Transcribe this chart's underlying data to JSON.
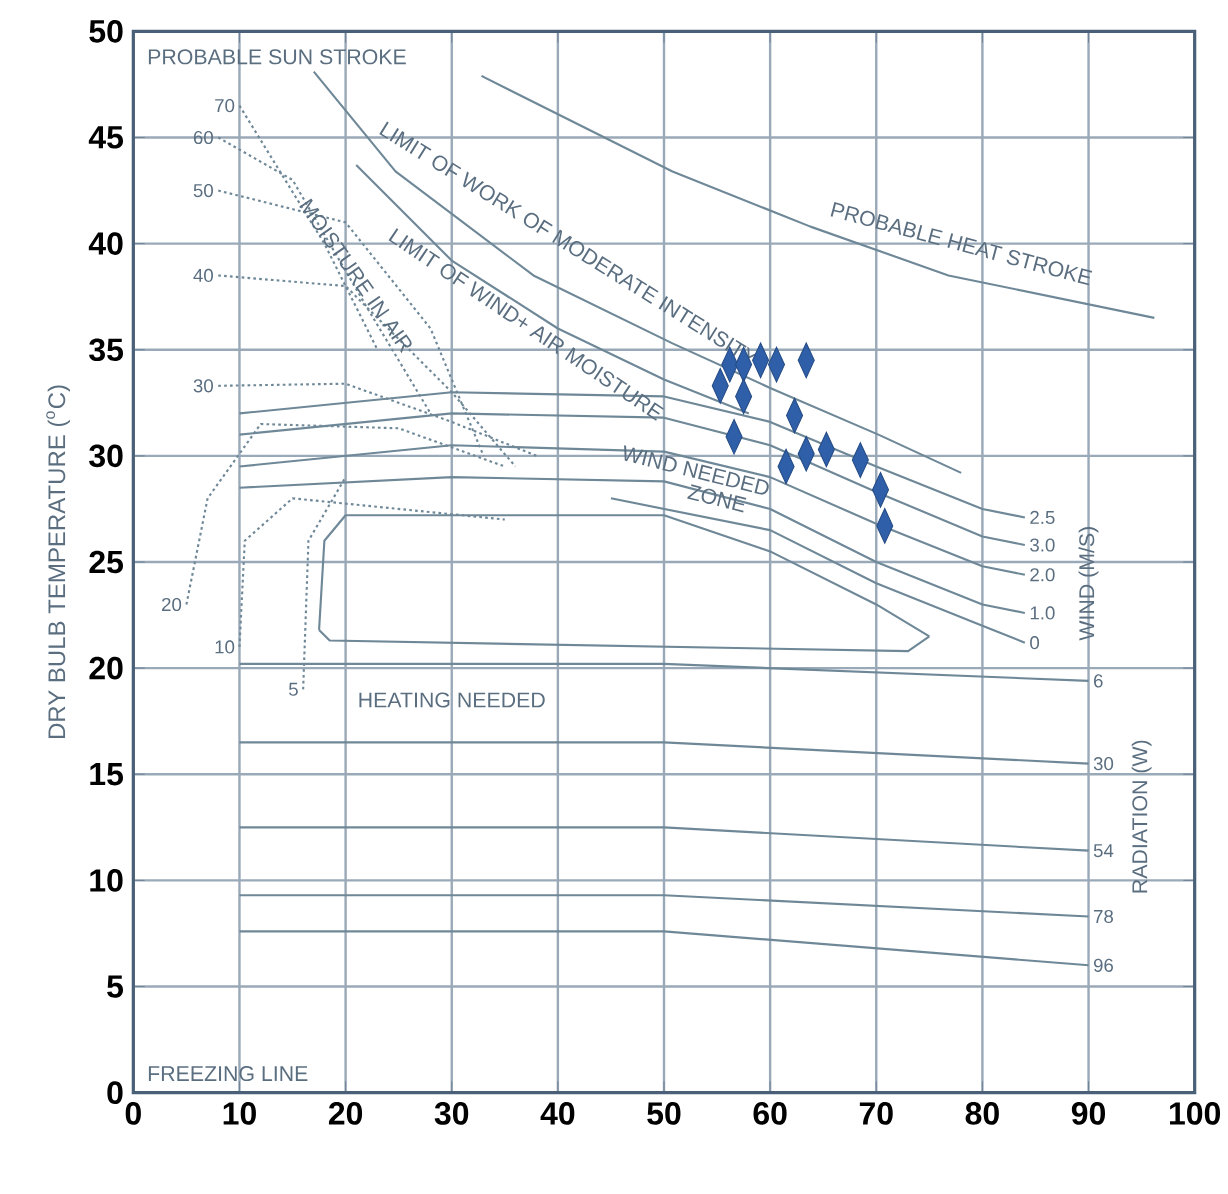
{
  "chart_data": {
    "type": "scatter",
    "ylabel": "DRY BULB TEMPERATURE ($^{o}$C)",
    "xlim": [
      0,
      100
    ],
    "xticks": [
      0,
      10,
      20,
      30,
      40,
      50,
      60,
      70,
      80,
      90,
      100
    ],
    "ylim": [
      0,
      50
    ],
    "yticks": [
      0,
      5,
      10,
      15,
      20,
      25,
      30,
      35,
      40,
      45,
      50
    ],
    "grid": true,
    "series": [
      {
        "type": "line",
        "color": "#6f8898",
        "x": [
          32.8,
          50.8,
          63.8,
          76.8,
          96.2
        ],
        "values": [
          47.9,
          43.4,
          40.8,
          38.5,
          36.5
        ]
      },
      {
        "type": "line",
        "color": "#6f8898",
        "x": [
          17,
          24.7,
          37.7,
          50.8,
          60,
          70.2,
          78
        ],
        "values": [
          48.1,
          43.4,
          38.5,
          35.3,
          33.2,
          31,
          29.2
        ]
      },
      {
        "type": "line",
        "color": "#6f8898",
        "x": [
          21,
          30,
          40,
          50,
          58
        ],
        "values": [
          43.7,
          39.2,
          36,
          33.6,
          32
        ]
      },
      {
        "type": "line",
        "color": "#6f8898",
        "x": [
          17.5,
          18,
          20,
          50,
          60,
          70,
          75
        ],
        "values": [
          21.8,
          26,
          27.2,
          27.2,
          25.5,
          23,
          21.5
        ]
      },
      {
        "type": "line",
        "color": "#6f8898",
        "x": [
          17.5,
          18.5,
          73,
          75
        ],
        "values": [
          21.8,
          21.3,
          20.8,
          21.5
        ]
      },
      {
        "type": "line",
        "name": "2.5",
        "color": "#6f8898",
        "x": [
          10,
          30,
          50,
          60,
          70,
          80,
          84
        ],
        "values": [
          32,
          33,
          32.8,
          31.6,
          29.5,
          27.5,
          27.1
        ]
      },
      {
        "type": "line",
        "name": "3.0",
        "color": "#6f8898",
        "x": [
          10,
          30,
          50,
          60,
          70,
          80,
          84
        ],
        "values": [
          31,
          32,
          31.8,
          30.5,
          28.3,
          26.2,
          25.8
        ]
      },
      {
        "type": "line",
        "name": "2.0",
        "color": "#6f8898",
        "x": [
          10,
          30,
          50,
          60,
          70,
          80,
          84
        ],
        "values": [
          29.5,
          30.5,
          30.2,
          29,
          26.8,
          24.8,
          24.4
        ]
      },
      {
        "type": "line",
        "name": "1.0",
        "color": "#6f8898",
        "x": [
          10,
          30,
          50,
          60,
          70,
          80,
          84
        ],
        "values": [
          28.5,
          29,
          28.8,
          27.5,
          25,
          23,
          22.6
        ]
      },
      {
        "type": "line",
        "name": "0",
        "color": "#6f8898",
        "x": [
          45,
          60,
          70,
          80,
          84
        ],
        "values": [
          28,
          26.5,
          24,
          22,
          21.2
        ]
      },
      {
        "type": "line",
        "name": "6",
        "color": "#6f8898",
        "x": [
          10,
          50,
          90
        ],
        "values": [
          20.2,
          20.2,
          19.4
        ]
      },
      {
        "type": "line",
        "name": "30",
        "color": "#6f8898",
        "x": [
          10,
          50,
          90
        ],
        "values": [
          16.5,
          16.5,
          15.5
        ]
      },
      {
        "type": "line",
        "name": "54",
        "color": "#6f8898",
        "x": [
          10,
          50,
          90
        ],
        "values": [
          12.5,
          12.5,
          11.4
        ]
      },
      {
        "type": "line",
        "name": "78",
        "color": "#6f8898",
        "x": [
          10,
          50,
          90
        ],
        "values": [
          9.3,
          9.3,
          8.3
        ]
      },
      {
        "type": "line",
        "name": "96",
        "color": "#6f8898",
        "x": [
          10,
          50,
          90
        ],
        "values": [
          7.6,
          7.6,
          6.0
        ]
      },
      {
        "type": "line",
        "name": "70",
        "line_style": "dotted",
        "color": "#6f8898",
        "x": [
          10,
          18,
          23
        ],
        "values": [
          46.5,
          40,
          35
        ]
      },
      {
        "type": "line",
        "name": "60",
        "line_style": "dotted",
        "color": "#6f8898",
        "x": [
          8,
          15,
          22,
          28
        ],
        "values": [
          45,
          43,
          37,
          32
        ]
      },
      {
        "type": "line",
        "name": "50",
        "line_style": "dotted",
        "color": "#6f8898",
        "x": [
          8,
          20,
          28,
          33
        ],
        "values": [
          42.5,
          41,
          36,
          30
        ]
      },
      {
        "type": "line",
        "name": "40",
        "line_style": "dotted",
        "color": "#6f8898",
        "x": [
          8,
          20,
          30,
          36
        ],
        "values": [
          38.5,
          38,
          33,
          29.5
        ]
      },
      {
        "type": "line",
        "name": "30",
        "line_style": "dotted",
        "color": "#6f8898",
        "x": [
          8,
          20,
          30,
          38
        ],
        "values": [
          33.3,
          33.4,
          31.6,
          30
        ]
      },
      {
        "type": "line",
        "name": "20",
        "line_style": "dotted",
        "color": "#6f8898",
        "x": [
          5,
          7,
          12,
          25,
          35
        ],
        "values": [
          23,
          28,
          31.5,
          31.3,
          29.5
        ]
      },
      {
        "type": "line",
        "name": "10",
        "line_style": "dotted",
        "color": "#6f8898",
        "x": [
          10,
          10.5,
          15,
          35
        ],
        "values": [
          21,
          26,
          28,
          27
        ]
      },
      {
        "type": "line",
        "name": "5",
        "line_style": "dotted",
        "color": "#6f8898",
        "x": [
          16,
          16.5,
          20
        ],
        "values": [
          19,
          26,
          29
        ]
      },
      {
        "color": "#2e5fa8",
        "marker": "diamond",
        "x": [
          56.2,
          57.5,
          59.1,
          60.6,
          63.4,
          55.3,
          57.5,
          56.6,
          62.3,
          61.5,
          63.4,
          65.3,
          68.5,
          70.4,
          70.8
        ],
        "values": [
          34.3,
          34.3,
          34.5,
          34.3,
          34.5,
          33.3,
          32.8,
          30.9,
          31.9,
          29.5,
          30.1,
          30.3,
          29.8,
          28.4,
          26.7
        ]
      }
    ],
    "annotations": [
      "PROBABLE SUN STROKE",
      "PROBABLE HEAT STROKE",
      "LIMIT OF WORK OF MODERATE INTENSITY",
      "LIMIT OF WIND+ AIR MOISTURE",
      "MOISTURE IN AIR",
      "WIND NEEDED",
      "ZONE",
      "HEATING NEEDED",
      "FREEZING LINE",
      "WIND (M/S)",
      "RADIATION (W)"
    ]
  }
}
